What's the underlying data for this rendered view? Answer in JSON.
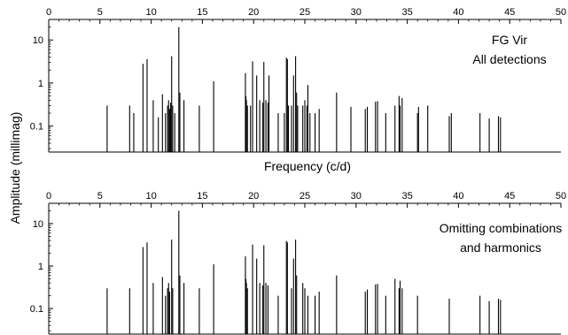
{
  "chart_data": [
    {
      "type": "bar",
      "panel": "top",
      "annotation": [
        "FG Vir",
        "All detections"
      ],
      "x_ticks": [
        0,
        5,
        10,
        15,
        20,
        25,
        30,
        35,
        40,
        45,
        50
      ],
      "y_ticks": [
        {
          "value": 0.1,
          "label": "0.1"
        },
        {
          "value": 1,
          "label": "1"
        },
        {
          "value": 10,
          "label": "10"
        }
      ],
      "xlim": [
        0,
        50
      ],
      "ylim": [
        0.025,
        30
      ],
      "yscale": "log",
      "grid": false,
      "x": [
        5.7,
        7.9,
        8.3,
        9.2,
        9.6,
        10.2,
        10.7,
        11.1,
        11.4,
        11.6,
        11.7,
        11.8,
        11.9,
        12.0,
        12.1,
        12.3,
        12.7,
        12.8,
        13.2,
        14.7,
        16.1,
        19.2,
        19.25,
        19.3,
        19.4,
        19.7,
        19.9,
        20.3,
        20.6,
        20.9,
        21.0,
        21.2,
        21.4,
        21.5,
        22.4,
        23.0,
        23.2,
        23.3,
        23.4,
        23.7,
        23.9,
        24.1,
        24.2,
        24.3,
        24.8,
        25.0,
        25.2,
        25.3,
        25.5,
        26.0,
        26.4,
        28.1,
        29.5,
        30.9,
        31.1,
        31.9,
        32.1,
        32.9,
        33.8,
        34.2,
        34.3,
        34.5,
        36.0,
        36.1,
        37.0,
        39.1,
        39.3,
        42.1,
        43.0,
        43.9,
        44.1
      ],
      "values": [
        0.3,
        0.3,
        0.2,
        2.8,
        3.6,
        0.4,
        0.16,
        0.55,
        0.2,
        0.3,
        0.4,
        0.25,
        0.35,
        4.2,
        0.3,
        0.2,
        20.0,
        0.6,
        0.4,
        0.3,
        1.1,
        1.7,
        0.5,
        0.4,
        0.3,
        0.3,
        3.2,
        1.5,
        0.4,
        0.35,
        3.1,
        0.4,
        0.35,
        1.5,
        0.2,
        0.2,
        3.9,
        3.6,
        0.3,
        0.3,
        1.5,
        4.2,
        0.6,
        0.3,
        0.3,
        0.4,
        0.3,
        0.9,
        0.2,
        0.2,
        0.25,
        0.6,
        0.28,
        0.25,
        0.28,
        0.37,
        0.38,
        0.2,
        0.3,
        0.5,
        0.3,
        0.45,
        0.2,
        0.28,
        0.3,
        0.17,
        0.2,
        0.2,
        0.15,
        0.17,
        0.16
      ]
    },
    {
      "type": "bar",
      "panel": "bottom",
      "annotation": [
        "Omitting combinations",
        "and harmonics"
      ],
      "x_ticks": [
        0,
        5,
        10,
        15,
        20,
        25,
        30,
        35,
        40,
        45,
        50
      ],
      "y_ticks": [
        {
          "value": 0.1,
          "label": "0.1"
        },
        {
          "value": 1,
          "label": "1"
        },
        {
          "value": 10,
          "label": "10"
        }
      ],
      "xlim": [
        0,
        50
      ],
      "ylim": [
        0.025,
        30
      ],
      "yscale": "log",
      "grid": false,
      "x": [
        5.7,
        7.9,
        9.2,
        9.6,
        10.2,
        11.1,
        11.4,
        11.6,
        11.7,
        11.8,
        12.0,
        12.1,
        12.7,
        12.8,
        13.2,
        14.7,
        16.1,
        19.2,
        19.25,
        19.3,
        19.4,
        19.9,
        20.3,
        20.6,
        20.9,
        21.0,
        21.2,
        21.4,
        22.4,
        23.2,
        23.3,
        23.7,
        23.9,
        24.1,
        24.2,
        24.8,
        25.0,
        25.3,
        26.0,
        26.4,
        28.1,
        30.9,
        31.1,
        31.9,
        32.1,
        32.9,
        33.8,
        34.2,
        34.3,
        34.5,
        36.0,
        39.1,
        42.1,
        43.0,
        43.9,
        44.1
      ],
      "values": [
        0.3,
        0.3,
        2.8,
        3.6,
        0.4,
        0.55,
        0.2,
        0.3,
        0.4,
        0.25,
        4.2,
        0.3,
        20.0,
        0.6,
        0.4,
        0.3,
        1.1,
        1.7,
        0.5,
        0.4,
        0.3,
        3.2,
        1.5,
        0.4,
        0.35,
        3.1,
        0.4,
        0.35,
        0.2,
        3.9,
        3.6,
        0.3,
        1.5,
        4.2,
        0.6,
        0.4,
        0.3,
        0.2,
        0.2,
        0.25,
        0.6,
        0.25,
        0.28,
        0.37,
        0.38,
        0.2,
        0.5,
        0.3,
        0.45,
        0.3,
        0.2,
        0.17,
        0.2,
        0.15,
        0.17,
        0.16
      ]
    }
  ],
  "labels": {
    "xlabel": "Frequency (c/d)",
    "ylabel": "Amplitude (millimag)"
  }
}
